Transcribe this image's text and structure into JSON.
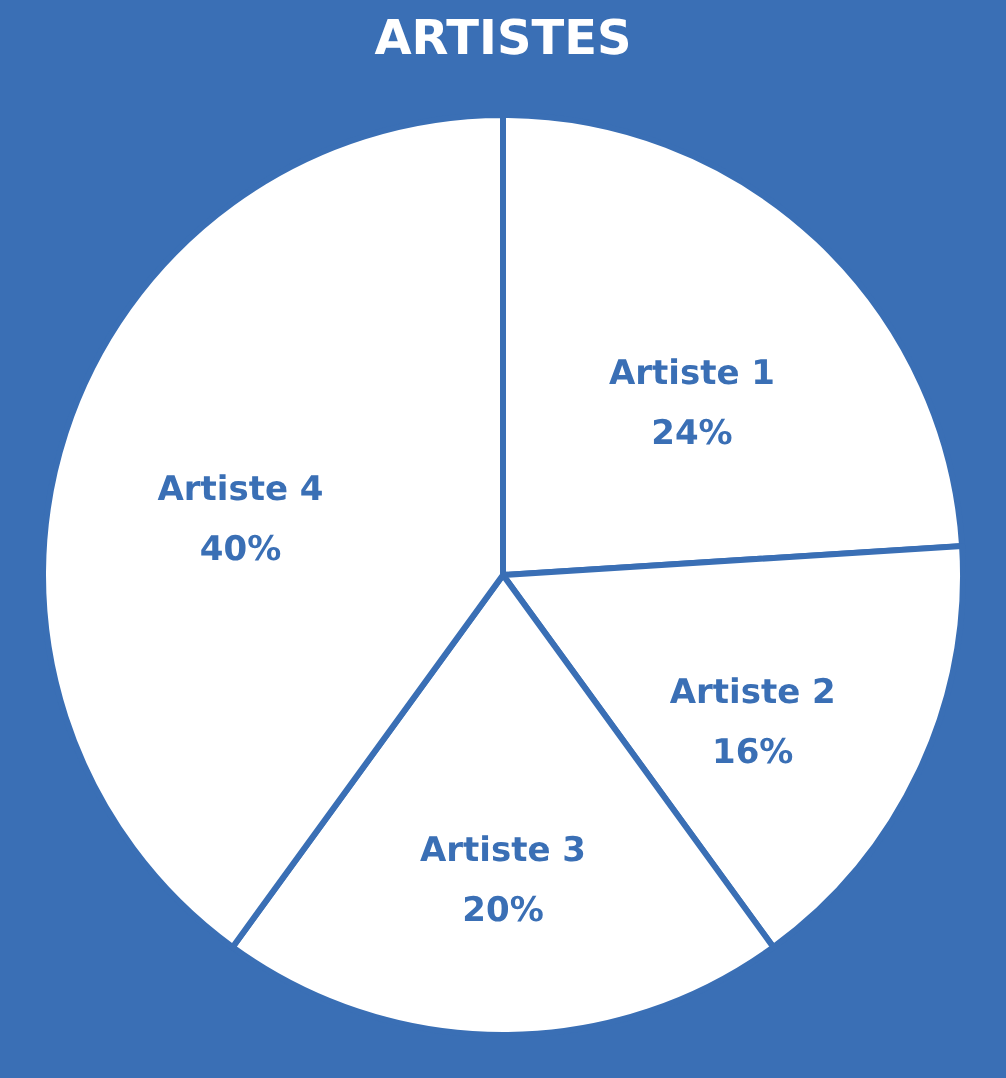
{
  "chart_data": {
    "type": "pie",
    "title": "ARTISTES",
    "categories": [
      "Artiste 1",
      "Artiste 2",
      "Artiste 3",
      "Artiste 4"
    ],
    "values": [
      24,
      16,
      20,
      40
    ],
    "colors": [
      "#ffffff",
      "#ffffff",
      "#ffffff",
      "#ffffff"
    ],
    "value_labels": [
      "24%",
      "16%",
      "20%",
      "40%"
    ],
    "legend": false
  }
}
